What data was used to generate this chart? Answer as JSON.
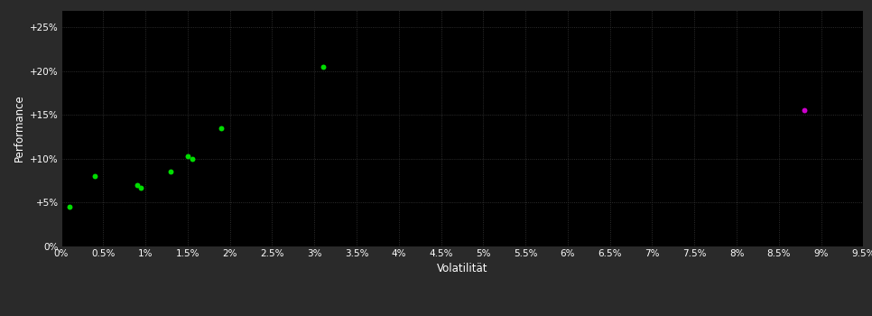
{
  "background_color": "#2a2a2a",
  "plot_bg_color": "#000000",
  "grid_color": "#3a3a3a",
  "grid_style": ":",
  "xlabel": "Volatilität",
  "ylabel": "Performance",
  "xlim": [
    0,
    0.095
  ],
  "ylim": [
    0,
    0.27
  ],
  "xticks": [
    0.0,
    0.005,
    0.01,
    0.015,
    0.02,
    0.025,
    0.03,
    0.035,
    0.04,
    0.045,
    0.05,
    0.055,
    0.06,
    0.065,
    0.07,
    0.075,
    0.08,
    0.085,
    0.09,
    0.095
  ],
  "xtick_labels": [
    "0%",
    "0.5%",
    "1%",
    "1.5%",
    "2%",
    "2.5%",
    "3%",
    "3.5%",
    "4%",
    "4.5%",
    "5%",
    "5.5%",
    "6%",
    "6.5%",
    "7%",
    "7.5%",
    "8%",
    "8.5%",
    "9%",
    "9.5%"
  ],
  "yticks": [
    0.0,
    0.05,
    0.1,
    0.15,
    0.2,
    0.25
  ],
  "ytick_labels": [
    "0%",
    "+5%",
    "+10%",
    "+15%",
    "+20%",
    "+25%"
  ],
  "green_points": [
    [
      0.001,
      0.045
    ],
    [
      0.004,
      0.08
    ],
    [
      0.009,
      0.07
    ],
    [
      0.0095,
      0.067
    ],
    [
      0.013,
      0.085
    ],
    [
      0.015,
      0.103
    ],
    [
      0.0155,
      0.1
    ],
    [
      0.019,
      0.135
    ],
    [
      0.031,
      0.205
    ]
  ],
  "magenta_points": [
    [
      0.088,
      0.155
    ]
  ],
  "green_color": "#00dd00",
  "magenta_color": "#cc00cc",
  "marker_size": 18,
  "tick_color": "#ffffff",
  "label_color": "#ffffff",
  "tick_fontsize": 7.5,
  "label_fontsize": 8.5
}
